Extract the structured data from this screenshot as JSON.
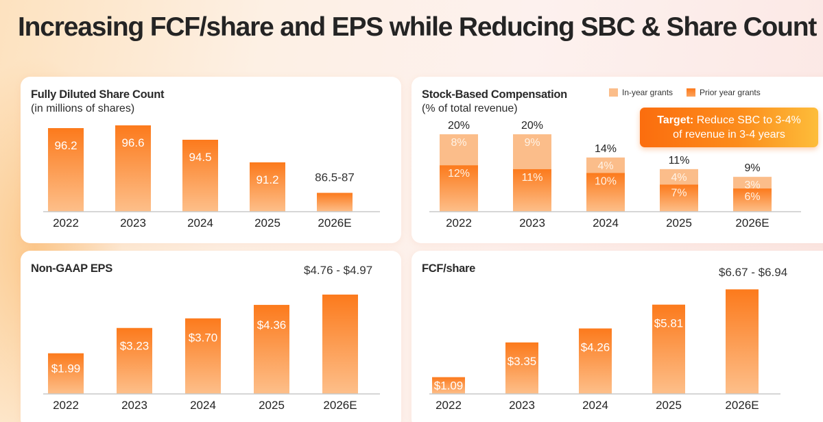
{
  "page": {
    "title": "Increasing FCF/share and EPS while Reducing SBC & Share Count"
  },
  "colors": {
    "bar_top": "#fc7a1c",
    "bar_bottom": "#fdbf8a",
    "in_year": "#fbbd8a",
    "axis": "#c8c8c8",
    "label_white": "#ffffff",
    "text": "#2a2a2a"
  },
  "chart_data": [
    {
      "id": "share_count",
      "type": "bar",
      "title": "Fully Diluted Share Count",
      "subtitle": "(in millions of shares)",
      "categories": [
        "2022",
        "2023",
        "2024",
        "2025",
        "2026E"
      ],
      "values": [
        96.2,
        96.6,
        94.5,
        91.2,
        86.75
      ],
      "value_labels": [
        "96.2",
        "96.6",
        "94.5",
        "91.2",
        "86.5-87"
      ],
      "range_label": "86.5-87",
      "ylim": [
        84,
        97
      ],
      "xlabel": "",
      "ylabel": "",
      "grid": false
    },
    {
      "id": "sbc",
      "type": "bar",
      "stacked": true,
      "title": "Stock-Based Compensation",
      "subtitle": "(% of total revenue)",
      "categories": [
        "2022",
        "2023",
        "2024",
        "2025",
        "2026E"
      ],
      "series": [
        {
          "name": "Prior year grants",
          "values": [
            12,
            11,
            10,
            7,
            6
          ],
          "labels": [
            "12%",
            "11%",
            "10%",
            "7%",
            "6%"
          ]
        },
        {
          "name": "In-year grants",
          "values": [
            8,
            9,
            4,
            4,
            3
          ],
          "labels": [
            "8%",
            "9%",
            "4%",
            "4%",
            "3%"
          ]
        }
      ],
      "totals": [
        20,
        20,
        14,
        11,
        9
      ],
      "total_labels": [
        "20%",
        "20%",
        "14%",
        "11%",
        "9%"
      ],
      "legend": [
        "In-year grants",
        "Prior year grants"
      ],
      "legend_position": "top-right",
      "annotation": {
        "bold": "Target:",
        "text_line1": " Reduce SBC to 3-4%",
        "text_line2": "of revenue in 3-4 years"
      },
      "ylim": [
        0,
        21
      ],
      "grid": false
    },
    {
      "id": "eps",
      "type": "bar",
      "title": "Non-GAAP EPS",
      "categories": [
        "2022",
        "2023",
        "2024",
        "2025",
        "2026E"
      ],
      "values": [
        1.99,
        3.23,
        3.7,
        4.36,
        4.865
      ],
      "value_labels": [
        "$1.99",
        "$3.23",
        "$3.70",
        "$4.36",
        ""
      ],
      "range_label": "$4.76 - $4.97",
      "ylim": [
        0,
        5.1
      ],
      "grid": false
    },
    {
      "id": "fcf",
      "type": "bar",
      "title": "FCF/share",
      "categories": [
        "2022",
        "2023",
        "2024",
        "2025",
        "2026E"
      ],
      "values": [
        1.09,
        3.35,
        4.26,
        5.81,
        6.805
      ],
      "value_labels": [
        "$1.09",
        "$3.35",
        "$4.26",
        "$5.81",
        ""
      ],
      "range_label": "$6.67 - $6.94",
      "ylim": [
        0,
        7.0
      ],
      "grid": false
    }
  ]
}
